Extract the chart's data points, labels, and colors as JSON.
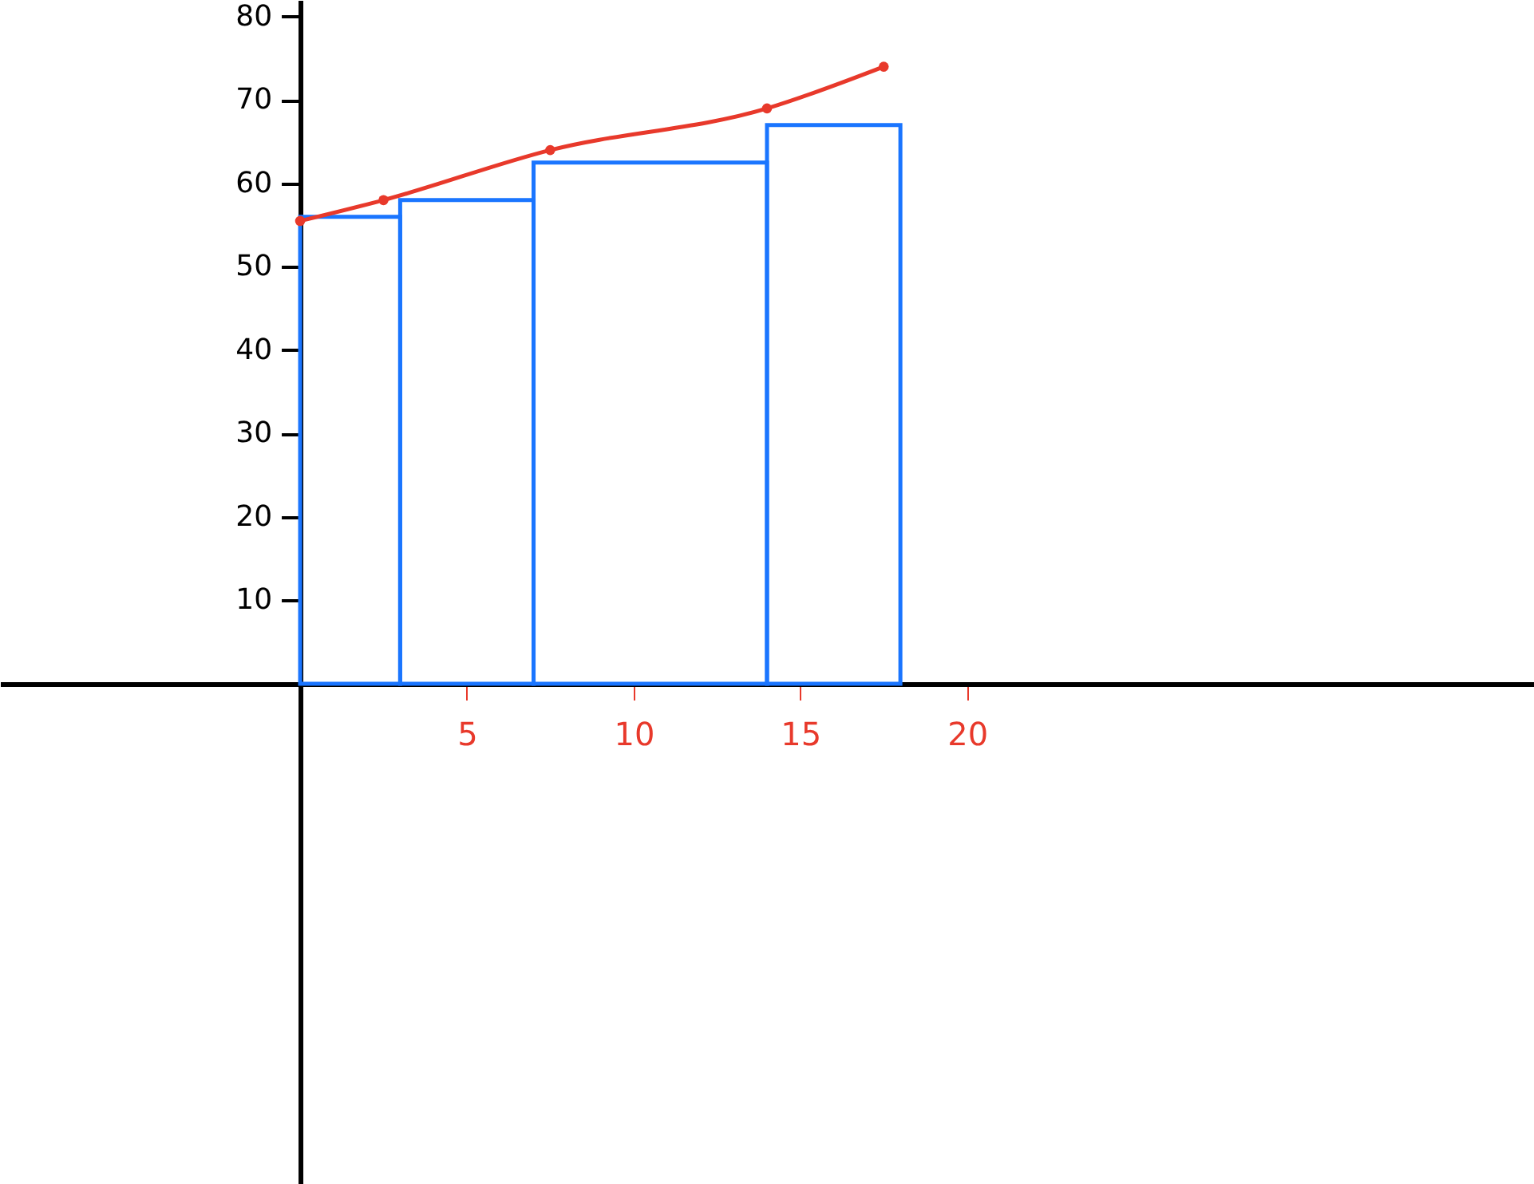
{
  "chart_data": {
    "type": "histogram",
    "bins": [
      0,
      3,
      7,
      14,
      18
    ],
    "series": [
      {
        "color": "#1a75ff",
        "values": [
          56,
          58,
          62.5,
          67
        ]
      },
      {
        "type": "line",
        "color": "#e8392b",
        "x": [
          0,
          2.5,
          7.5,
          14,
          17.5
        ],
        "values": [
          55.5,
          58,
          64,
          69,
          74
        ]
      }
    ],
    "xlim": [
      -9,
      37
    ],
    "ylim": [
      -60,
      82
    ],
    "xticks": [
      5,
      10,
      15,
      20
    ],
    "yticks": [
      10,
      20,
      30,
      40,
      50,
      60,
      70,
      80
    ],
    "grid": false,
    "marker": "circle",
    "line_style": "solid"
  }
}
